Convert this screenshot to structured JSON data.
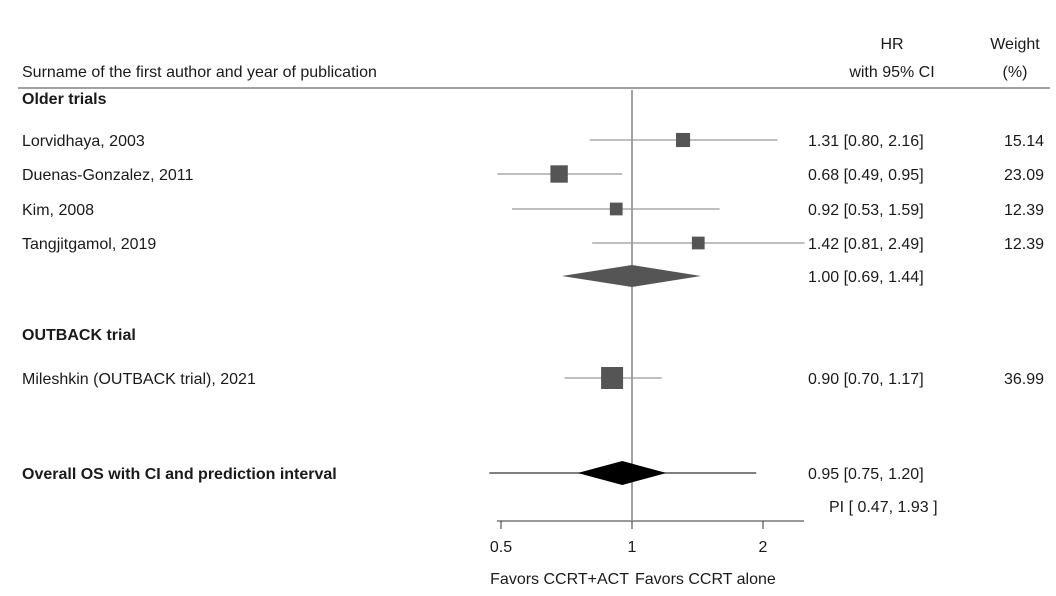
{
  "chart_data": {
    "type": "forest",
    "header": {
      "study_col": "Surname of the first author and year of publication",
      "hr_col_line1": "HR",
      "hr_col_line2": "with 95% CI",
      "weight_col_line1": "Weight",
      "weight_col_line2": "(%)"
    },
    "x_axis": {
      "scale": "log",
      "ticks": [
        0.5,
        1,
        2
      ],
      "tick_labels": [
        "0.5",
        "1",
        "2"
      ],
      "reference_line": 1,
      "label_left": "Favors CCRT+ACT",
      "label_right": "Favors CCRT alone"
    },
    "groups": [
      {
        "name": "Older trials",
        "studies": [
          {
            "label": "Lorvidhaya, 2003",
            "hr": 1.31,
            "lo": 0.8,
            "hi": 2.16,
            "weight": 15.14,
            "text": "1.31 [0.80, 2.16]",
            "weight_text": "15.14"
          },
          {
            "label": "Duenas-Gonzalez, 2011",
            "hr": 0.68,
            "lo": 0.49,
            "hi": 0.95,
            "weight": 23.09,
            "text": "0.68 [0.49, 0.95]",
            "weight_text": "23.09"
          },
          {
            "label": "Kim, 2008",
            "hr": 0.92,
            "lo": 0.53,
            "hi": 1.59,
            "weight": 12.39,
            "text": "0.92 [0.53, 1.59]",
            "weight_text": "12.39"
          },
          {
            "label": "Tangjitgamol, 2019",
            "hr": 1.42,
            "lo": 0.81,
            "hi": 2.49,
            "weight": 12.39,
            "text": "1.42 [0.81, 2.49]",
            "weight_text": "12.39"
          }
        ],
        "pooled": {
          "hr": 1.0,
          "lo": 0.69,
          "hi": 1.44,
          "text": "1.00 [0.69, 1.44]",
          "color": "#555555"
        }
      },
      {
        "name": "OUTBACK trial",
        "studies": [
          {
            "label": "Mileshkin (OUTBACK trial), 2021",
            "hr": 0.9,
            "lo": 0.7,
            "hi": 1.17,
            "weight": 36.99,
            "text": "0.90 [0.70, 1.17]",
            "weight_text": "36.99"
          }
        ]
      }
    ],
    "overall": {
      "label": "Overall OS with CI and prediction interval",
      "hr": 0.95,
      "lo": 0.75,
      "hi": 1.2,
      "pi_lo": 0.47,
      "pi_hi": 1.93,
      "text": "0.95 [0.75, 1.20]",
      "pi_text": "PI [ 0.47,  1.93 ]",
      "color": "#000000"
    },
    "colors": {
      "marker": "#555555",
      "ci_line": "#999999",
      "reference_line": "#444444",
      "axis": "#333333"
    }
  }
}
